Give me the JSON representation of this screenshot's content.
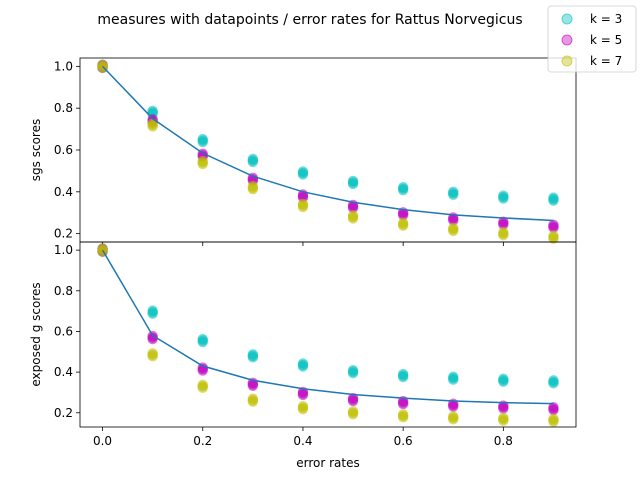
{
  "chart_data": {
    "type": "scatter",
    "title": "measures with datapoints / error rates for Rattus Norvegicus",
    "xlabel": "error rates",
    "xlim": [
      -0.045,
      0.945
    ],
    "x_ticks": [
      0.0,
      0.2,
      0.4,
      0.6,
      0.8
    ],
    "x_tick_labels": [
      "0.0",
      "0.2",
      "0.4",
      "0.6",
      "0.8"
    ],
    "legend": {
      "placement": "top-right",
      "entries": [
        {
          "label": "k = 3",
          "color": "#00bfbf"
        },
        {
          "label": "k = 5",
          "color": "#bf00bf"
        },
        {
          "label": "k = 7",
          "color": "#bfbf00"
        }
      ]
    },
    "fit_color": "#1f77b4",
    "panels": [
      {
        "ylabel": "sgs scores",
        "ylim": [
          0.16,
          1.04
        ],
        "y_ticks": [
          0.2,
          0.4,
          0.6,
          0.8,
          1.0
        ],
        "y_tick_labels": [
          "0.2",
          "0.4",
          "0.6",
          "0.8",
          "1.0"
        ],
        "x": [
          0.0,
          0.1,
          0.2,
          0.3,
          0.4,
          0.5,
          0.6,
          0.7,
          0.8,
          0.9
        ],
        "series": [
          {
            "name": "k = 3",
            "values": [
              1.0,
              0.78,
              0.645,
              0.55,
              0.49,
              0.445,
              0.415,
              0.393,
              0.375,
              0.365
            ]
          },
          {
            "name": "k = 5",
            "values": [
              1.0,
              0.74,
              0.575,
              0.46,
              0.38,
              0.33,
              0.295,
              0.27,
              0.25,
              0.235
            ]
          },
          {
            "name": "k = 7",
            "values": [
              1.0,
              0.72,
              0.54,
              0.42,
              0.335,
              0.28,
              0.245,
              0.22,
              0.2,
              0.183
            ]
          }
        ],
        "fit": [
          1.0,
          0.75,
          0.585,
          0.475,
          0.4,
          0.35,
          0.315,
          0.29,
          0.275,
          0.263
        ]
      },
      {
        "ylabel": "exposed g scores",
        "xlabel": "error rates",
        "ylim": [
          0.13,
          1.04
        ],
        "y_ticks": [
          0.2,
          0.4,
          0.6,
          0.8,
          1.0
        ],
        "y_tick_labels": [
          "0.2",
          "0.4",
          "0.6",
          "0.8",
          "1.0"
        ],
        "x": [
          0.0,
          0.1,
          0.2,
          0.3,
          0.4,
          0.5,
          0.6,
          0.7,
          0.8,
          0.9
        ],
        "series": [
          {
            "name": "k = 3",
            "values": [
              1.0,
              0.695,
              0.555,
              0.48,
              0.435,
              0.402,
              0.383,
              0.37,
              0.36,
              0.352
            ]
          },
          {
            "name": "k = 5",
            "values": [
              1.0,
              0.57,
              0.415,
              0.34,
              0.295,
              0.265,
              0.25,
              0.237,
              0.228,
              0.22
            ]
          },
          {
            "name": "k = 7",
            "values": [
              1.0,
              0.485,
              0.33,
              0.262,
              0.225,
              0.2,
              0.185,
              0.175,
              0.168,
              0.163
            ]
          }
        ],
        "fit": [
          1.0,
          0.58,
          0.43,
          0.36,
          0.318,
          0.29,
          0.272,
          0.258,
          0.25,
          0.245
        ]
      }
    ]
  }
}
